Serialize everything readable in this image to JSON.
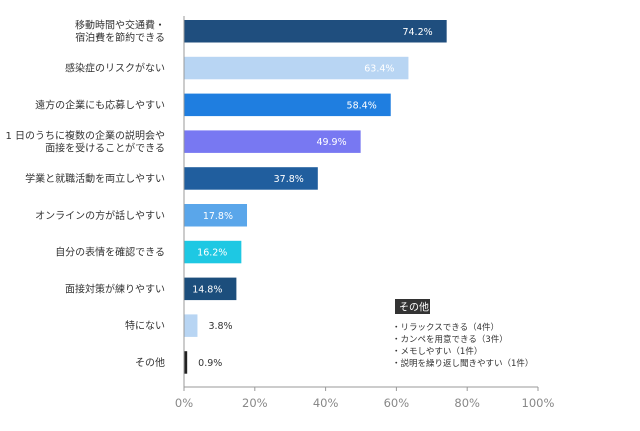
{
  "chart_data": {
    "type": "bar",
    "orientation": "horizontal",
    "categories": [
      [
        "移動時間や交通費・",
        "宿泊費を節約できる"
      ],
      [
        "感染症のリスクがない"
      ],
      [
        "遠方の企業にも応募しやすい"
      ],
      [
        "1 日のうちに複数の企業の説明会や",
        "面接を受けることができる"
      ],
      [
        "学業と就職活動を両立しやすい"
      ],
      [
        "オンラインの方が話しやすい"
      ],
      [
        "自分の表情を確認できる"
      ],
      [
        "面接対策が練りやすい"
      ],
      [
        "特にない"
      ],
      [
        "その他"
      ]
    ],
    "values": [
      74.2,
      63.4,
      58.4,
      49.9,
      37.8,
      17.8,
      16.2,
      14.8,
      3.8,
      0.9
    ],
    "value_labels": [
      "74.2%",
      "63.4%",
      "58.4%",
      "49.9%",
      "37.8%",
      "17.8%",
      "16.2%",
      "14.8%",
      "3.8%",
      "0.9%"
    ],
    "colors": [
      "#1f4e7e",
      "#b8d5f3",
      "#1f7ee0",
      "#7878f2",
      "#205e9e",
      "#5aa6ea",
      "#1ec8e3",
      "#1c4e7c",
      "#b8d5f3",
      "#222222"
    ],
    "label_colors": [
      "#ffffff",
      "#ffffff",
      "#ffffff",
      "#ffffff",
      "#ffffff",
      "#ffffff",
      "#ffffff",
      "#ffffff",
      "#333333",
      "#333333"
    ],
    "xlim": [
      0,
      100
    ],
    "ticks": [
      0,
      20,
      40,
      60,
      80,
      100
    ],
    "tick_labels": [
      "0%",
      "20%",
      "40%",
      "60%",
      "80%",
      "100%"
    ],
    "grid": false,
    "annotation": {
      "title": "その他",
      "items": [
        "・リラックスできる（4件）",
        "・カンペを用意できる（3件）",
        "・メモしやすい（1件）",
        "・説明を繰り返し聞きやすい（1件）"
      ]
    }
  }
}
